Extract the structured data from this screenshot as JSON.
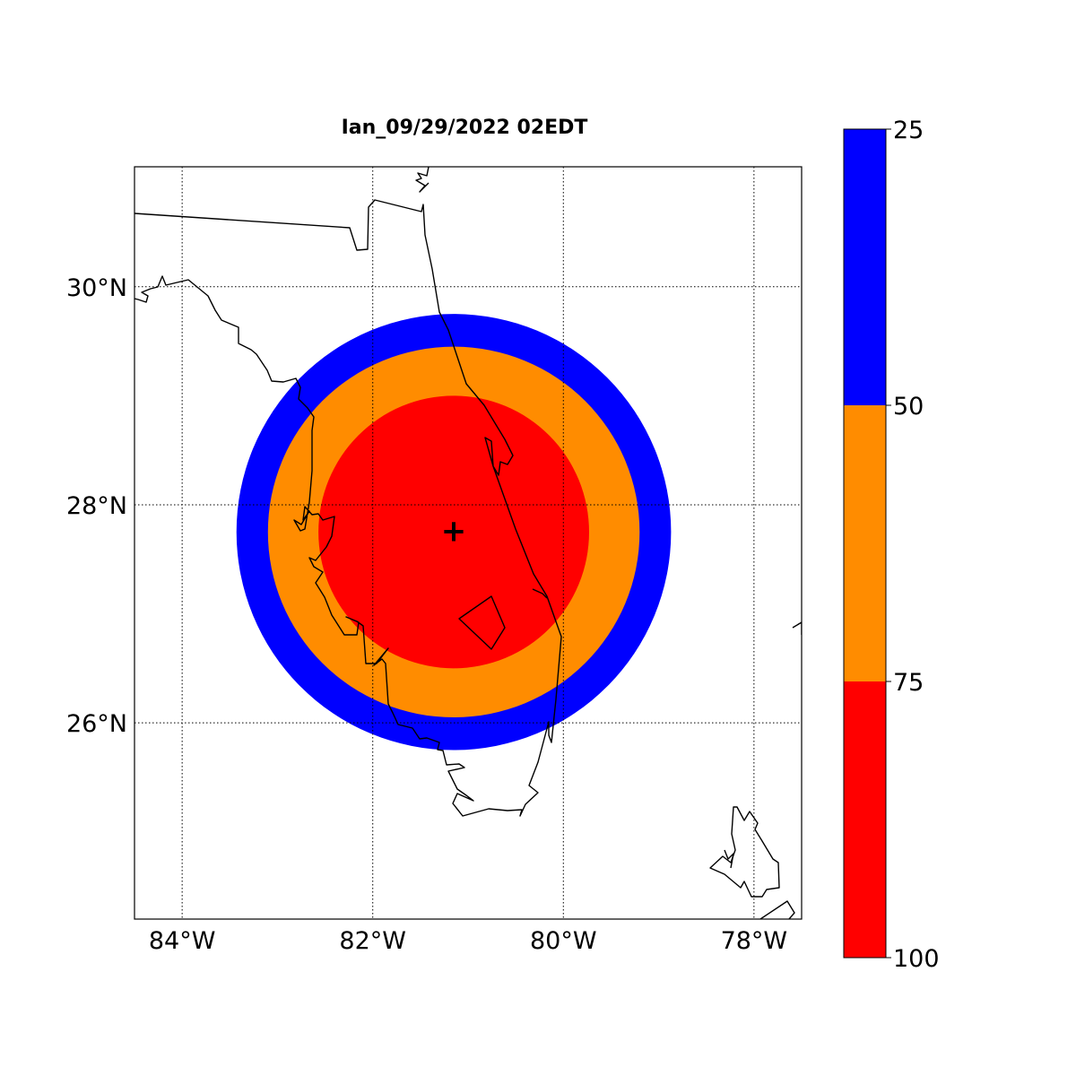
{
  "title": "Ian_09/29/2022   02EDT",
  "map": {
    "extent": {
      "lon_min": -84.5,
      "lon_max": -77.5,
      "lat_min": 24.2,
      "lat_max": 31.1
    },
    "lon_gridlines": [
      -84,
      -82,
      -80,
      -78
    ],
    "lat_gridlines": [
      26,
      28,
      30
    ],
    "lon_labels": [
      "84°W",
      "82°W",
      "80°W",
      "78°W"
    ],
    "lat_labels": [
      "26°N",
      "28°N",
      "30°N"
    ],
    "center": {
      "lon": -81.15,
      "lat": 27.75,
      "marker": "+"
    },
    "rings": [
      {
        "level": "25-50",
        "color": "#0000ff",
        "radius_deg_lon": 2.28,
        "radius_deg_lat": 2.0
      },
      {
        "level": "50-75",
        "color": "#ff8c00",
        "radius_deg_lon": 1.95,
        "radius_deg_lat": 1.7
      },
      {
        "level": "75-100",
        "color": "#ff0000",
        "radius_deg_lon": 1.42,
        "radius_deg_lat": 1.25
      }
    ]
  },
  "colorbar": {
    "ticks": [
      "25",
      "50",
      "75",
      "100"
    ],
    "bands": [
      {
        "from": "25",
        "to": "50",
        "color": "#0000ff"
      },
      {
        "from": "50",
        "to": "75",
        "color": "#ff8c00"
      },
      {
        "from": "75",
        "to": "100",
        "color": "#ff0000"
      }
    ]
  }
}
